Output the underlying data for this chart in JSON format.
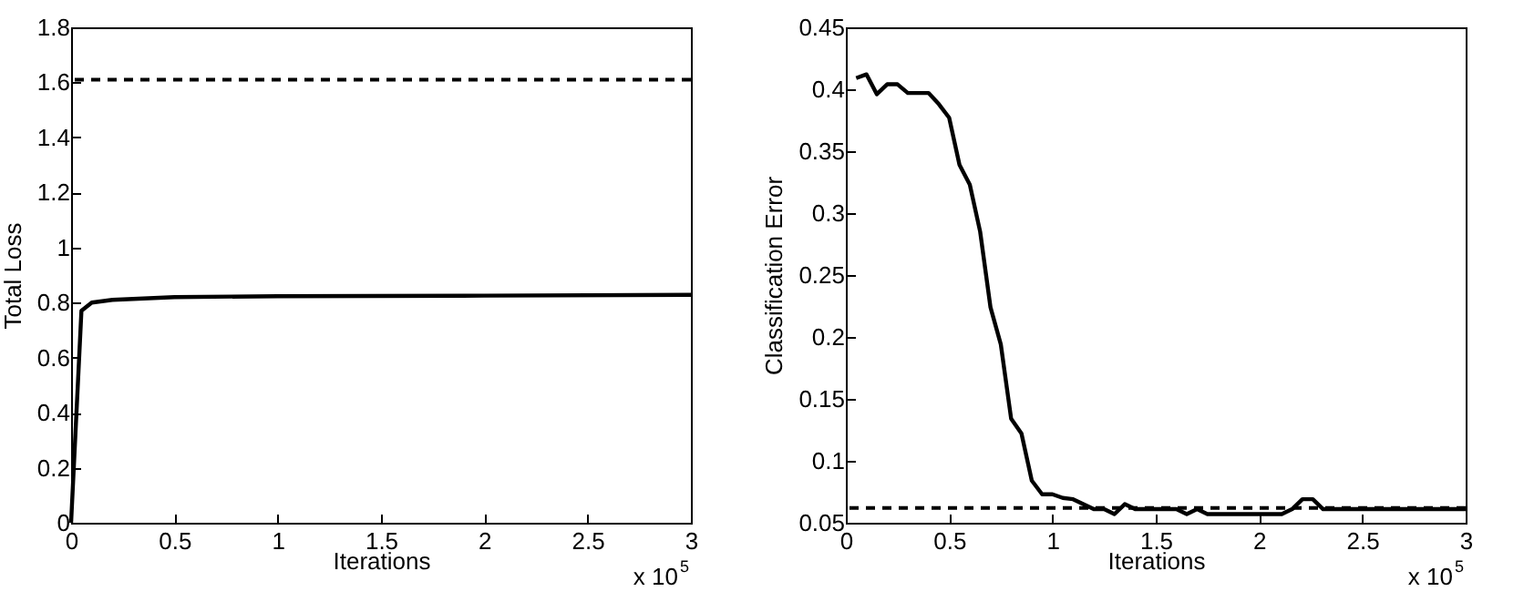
{
  "chart_data": [
    {
      "type": "line",
      "xlabel": "Iterations",
      "ylabel": "Total Loss",
      "annotations": [
        "x 10$^{5}$"
      ],
      "xlim": [
        0,
        3
      ],
      "xticks": [
        0,
        0.5,
        1,
        1.5,
        2,
        2.5,
        3
      ],
      "ylim": [
        0,
        1.8
      ],
      "yticks": [
        0,
        0.2,
        0.4,
        0.6,
        0.8,
        1,
        1.2,
        1.4,
        1.6,
        1.8
      ],
      "grid": false,
      "marker": "none",
      "line_style": "solid",
      "x": [
        0,
        0.05,
        0.1,
        0.2,
        0.5,
        1,
        2,
        3
      ],
      "series": [
        {
          "color": "#000000",
          "values": [
            0,
            0.77,
            0.8,
            0.81,
            0.82,
            0.823,
            0.825,
            0.828
          ]
        }
      ],
      "ref_lines": [
        {
          "axis": "y",
          "value": 1.61,
          "line_style": "dashed",
          "color": "#000000"
        }
      ]
    },
    {
      "type": "line",
      "xlabel": "Iterations",
      "ylabel": "Classification Error",
      "annotations": [
        "x 10$^{5}$"
      ],
      "xlim": [
        0,
        3
      ],
      "xticks": [
        0,
        0.5,
        1,
        1.5,
        2,
        2.5,
        3
      ],
      "ylim": [
        0.05,
        0.45
      ],
      "yticks": [
        0.05,
        0.1,
        0.15,
        0.2,
        0.25,
        0.3,
        0.35,
        0.4,
        0.45
      ],
      "grid": false,
      "marker": "none",
      "line_style": "solid",
      "x": [
        0.05,
        0.1,
        0.15,
        0.2,
        0.25,
        0.3,
        0.4,
        0.45,
        0.5,
        0.55,
        0.6,
        0.65,
        0.7,
        0.75,
        0.8,
        0.85,
        0.9,
        0.95,
        1.0,
        1.05,
        1.1,
        1.2,
        1.25,
        1.3,
        1.35,
        1.4,
        1.6,
        1.65,
        1.7,
        1.75,
        2.11,
        2.16,
        2.21,
        2.26,
        2.31,
        3.0
      ],
      "series": [
        {
          "color": "#000000",
          "values": [
            0.409,
            0.412,
            0.396,
            0.404,
            0.404,
            0.397,
            0.397,
            0.388,
            0.377,
            0.339,
            0.323,
            0.285,
            0.224,
            0.194,
            0.134,
            0.122,
            0.084,
            0.073,
            0.073,
            0.07,
            0.069,
            0.061,
            0.061,
            0.057,
            0.065,
            0.061,
            0.061,
            0.057,
            0.061,
            0.057,
            0.057,
            0.061,
            0.069,
            0.069,
            0.061,
            0.061
          ]
        }
      ],
      "ref_lines": [
        {
          "axis": "y",
          "value": 0.062,
          "line_style": "dashed",
          "color": "#000000"
        }
      ]
    }
  ]
}
